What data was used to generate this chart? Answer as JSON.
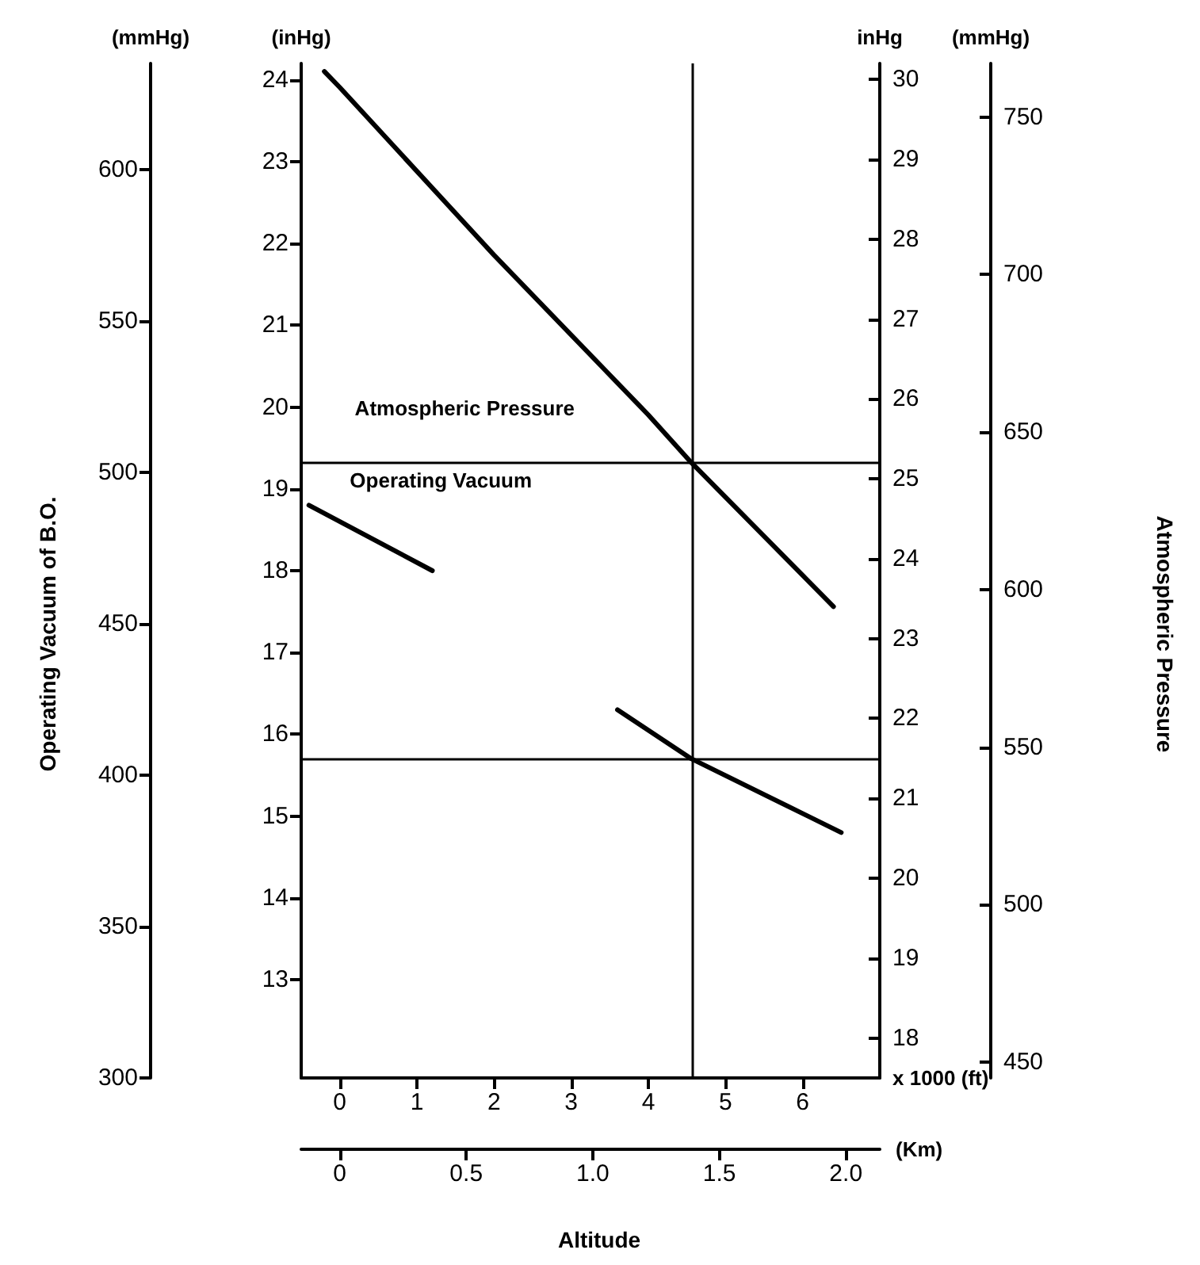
{
  "chart_data": {
    "type": "line",
    "xlabel": "x 1000 (ft)",
    "ylabel": "(inHg)",
    "y2label": "inHg",
    "y3label": "(mmHg)",
    "x2label": "(Km)",
    "xlim": [
      -0.5,
      7.0
    ],
    "xticks": [
      0,
      1,
      2,
      3,
      4,
      5,
      6
    ],
    "x2lim": [
      -0.152,
      2.134
    ],
    "x2ticks": [
      0,
      0.5,
      {
        "value": 1.0,
        "label": "1.0"
      },
      1.5,
      {
        "value": 2.0,
        "label": "2.0"
      }
    ],
    "ylim": [
      11.8,
      24.2
    ],
    "yticks": [
      13,
      14,
      15,
      16,
      17,
      18,
      19,
      20,
      21,
      22,
      23,
      24
    ],
    "y2lim": [
      17.5,
      30.2
    ],
    "y2ticks": [
      18,
      19,
      20,
      21,
      22,
      23,
      24,
      25,
      26,
      27,
      28,
      29,
      30
    ],
    "y3lim": [
      445,
      767
    ],
    "y3ticks": [
      450,
      500,
      550,
      600,
      650,
      700,
      750
    ],
    "series": [
      {
        "name": "Atmospheric Pressure",
        "axis": "y2",
        "color": "#000000",
        "x": [
          -0.2,
          0,
          2,
          4,
          4.56,
          6.4
        ],
        "values": [
          30.1,
          29.9,
          27.8,
          25.8,
          25.2,
          23.4
        ]
      },
      {
        "name": "Operating Vacuum",
        "axis": "y",
        "color": "#000000",
        "x": [
          -0.4,
          1.2,
          2.4,
          3.6,
          4.56,
          6.5
        ],
        "values": [
          18.8,
          18.0,
          null,
          16.3,
          15.7,
          14.8
        ]
      }
    ],
    "ref_lines": [
      {
        "axis": "x",
        "value": 4.56,
        "label": null
      },
      {
        "axis": "y2",
        "value": 25.2,
        "label": null
      },
      {
        "axis": "y",
        "value": 15.7,
        "label": null
      }
    ],
    "annotations": [
      "Operating Vacuum of B.O.",
      "Atmospheric Pressure",
      "Altitude",
      "(mmHg)",
      "300",
      "350",
      "400",
      "450",
      "500",
      "550",
      "600"
    ],
    "grid": false,
    "legend": false,
    "marker": "none",
    "line_style": "solid"
  }
}
